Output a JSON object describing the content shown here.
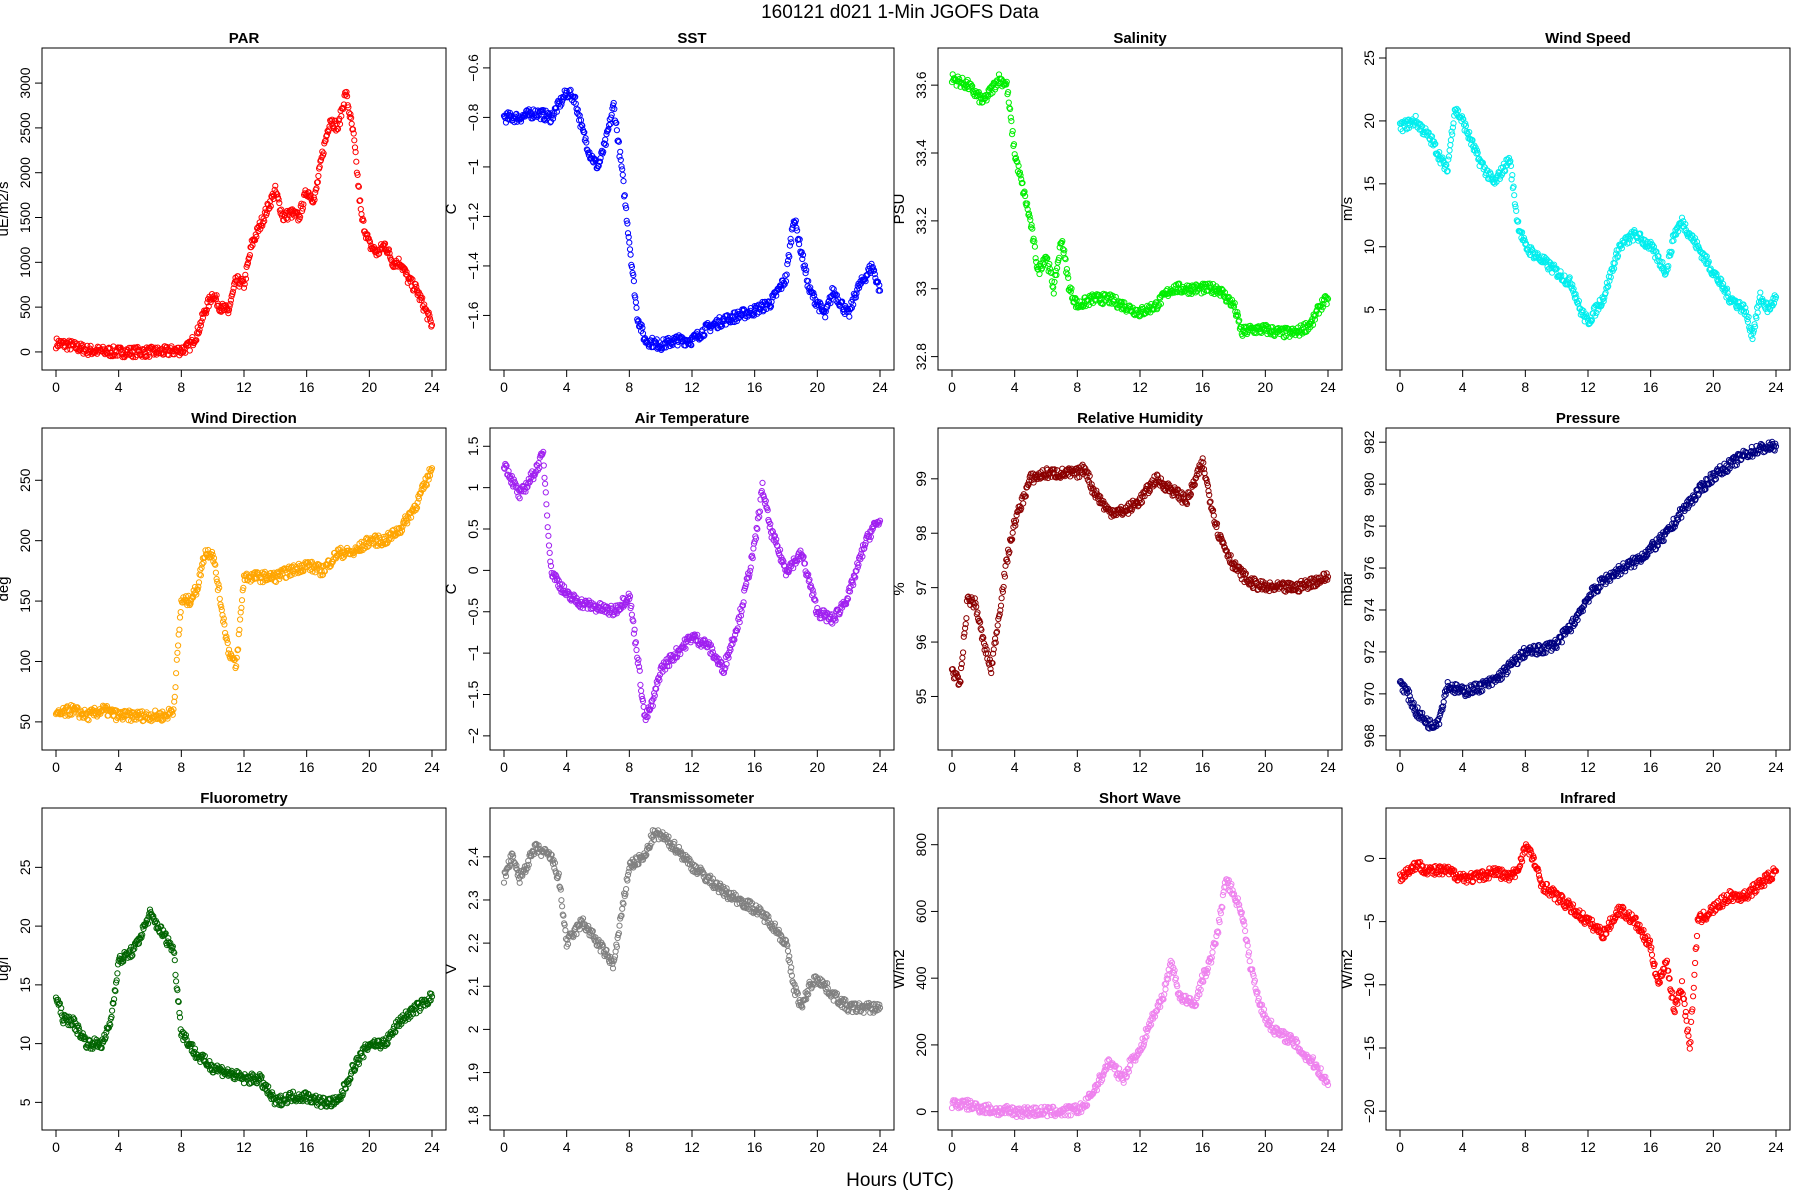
{
  "figure": {
    "title": "160121    d021    1-Min  JGOFS Data",
    "xlabel": "Hours (UTC)"
  },
  "chart_data": [
    {
      "type": "scatter",
      "title": "PAR",
      "ylabel": "uE/m2/s",
      "color": "#ff0000",
      "xlim": [
        0,
        24
      ],
      "ylim": [
        -90,
        3280
      ],
      "yticks": [
        0,
        500,
        1000,
        1500,
        2000,
        2500,
        3000
      ],
      "xticks": [
        0,
        4,
        8,
        12,
        16,
        20,
        24
      ],
      "x": [
        0,
        1,
        2,
        3,
        4,
        5,
        6,
        7,
        8,
        8.5,
        9,
        9.5,
        10,
        10.5,
        11,
        11.5,
        12,
        12.5,
        13,
        13.5,
        14,
        14.5,
        15,
        15.5,
        16,
        16.5,
        17,
        17.5,
        18,
        18.5,
        19,
        19.5,
        20,
        20.5,
        21,
        21.5,
        22,
        22.5,
        23,
        23.5,
        24
      ],
      "y": [
        100,
        70,
        20,
        5,
        0,
        0,
        0,
        5,
        20,
        60,
        200,
        450,
        650,
        500,
        450,
        800,
        750,
        1200,
        1400,
        1600,
        1800,
        1500,
        1550,
        1500,
        1800,
        1700,
        2200,
        2600,
        2500,
        2900,
        2400,
        1500,
        1200,
        1100,
        1200,
        1000,
        1000,
        800,
        700,
        500,
        300
      ]
    },
    {
      "type": "scatter",
      "title": "SST",
      "ylabel": "C",
      "color": "#0000ff",
      "xlim": [
        0,
        24
      ],
      "ylim": [
        -1.78,
        -0.56
      ],
      "yticks": [
        -1.6,
        -1.4,
        -1.2,
        -1.0,
        -0.8,
        -0.6
      ],
      "xticks": [
        0,
        4,
        8,
        12,
        16,
        20,
        24
      ],
      "x": [
        0,
        1,
        2,
        3,
        4,
        4.5,
        5,
        5.5,
        6,
        6.5,
        7,
        7.5,
        8,
        8.5,
        9,
        10,
        11,
        12,
        13,
        14,
        15,
        16,
        17,
        18,
        18.5,
        19,
        19.5,
        20,
        20.5,
        21,
        21.5,
        22,
        22.5,
        23,
        23.5,
        24
      ],
      "y": [
        -0.8,
        -0.8,
        -0.78,
        -0.8,
        -0.7,
        -0.72,
        -0.85,
        -0.95,
        -1.0,
        -0.9,
        -0.75,
        -1.0,
        -1.3,
        -1.6,
        -1.7,
        -1.72,
        -1.7,
        -1.7,
        -1.65,
        -1.62,
        -1.6,
        -1.58,
        -1.55,
        -1.45,
        -1.2,
        -1.35,
        -1.5,
        -1.55,
        -1.6,
        -1.5,
        -1.55,
        -1.6,
        -1.5,
        -1.45,
        -1.4,
        -1.5
      ]
    },
    {
      "type": "scatter",
      "title": "Salinity",
      "ylabel": "PSU",
      "color": "#00ee00",
      "xlim": [
        0,
        24
      ],
      "ylim": [
        32.79,
        33.68
      ],
      "yticks": [
        32.8,
        33.0,
        33.2,
        33.4,
        33.6
      ],
      "xticks": [
        0,
        4,
        8,
        12,
        16,
        20,
        24
      ],
      "x": [
        0,
        1,
        2,
        3,
        3.5,
        4,
        4.5,
        5,
        5.5,
        6,
        6.5,
        7,
        7.5,
        8,
        9,
        10,
        11,
        12,
        13,
        14,
        15,
        16,
        17,
        18,
        18.5,
        19,
        20,
        21,
        22,
        23,
        23.5,
        24
      ],
      "y": [
        33.62,
        33.6,
        33.55,
        33.62,
        33.6,
        33.4,
        33.3,
        33.2,
        33.05,
        33.1,
        33.0,
        33.15,
        33.0,
        32.95,
        32.97,
        32.97,
        32.95,
        32.93,
        32.95,
        33.0,
        33.0,
        33.0,
        33.0,
        32.95,
        32.87,
        32.88,
        32.88,
        32.87,
        32.87,
        32.9,
        32.95,
        32.97
      ]
    },
    {
      "type": "scatter",
      "title": "Wind Speed",
      "ylabel": "m/s",
      "color": "#00eeee",
      "xlim": [
        0,
        24
      ],
      "ylim": [
        1,
        25
      ],
      "yticks": [
        5,
        10,
        15,
        20,
        25
      ],
      "xticks": [
        0,
        4,
        8,
        12,
        16,
        20,
        24
      ],
      "x": [
        0,
        1,
        2,
        3,
        3.5,
        4,
        5,
        6,
        6.5,
        7,
        7.5,
        8,
        9,
        10,
        11,
        11.5,
        12,
        13,
        13.5,
        14,
        15,
        16,
        17,
        17.5,
        18,
        19,
        20,
        21,
        22,
        22.5,
        23,
        23.5,
        24
      ],
      "y": [
        19.5,
        20,
        18.5,
        16,
        21,
        20,
        17,
        15,
        16,
        17,
        12,
        10,
        9,
        8,
        7,
        5,
        4,
        6,
        8,
        10,
        11,
        10,
        8,
        11,
        12,
        10,
        8,
        6,
        5,
        3,
        6,
        5,
        6
      ]
    },
    {
      "type": "scatter",
      "title": "Wind Direction",
      "ylabel": "deg",
      "color": "#ffa500",
      "xlim": [
        0,
        24
      ],
      "ylim": [
        35,
        285
      ],
      "yticks": [
        50,
        100,
        150,
        200,
        250
      ],
      "xticks": [
        0,
        4,
        8,
        12,
        16,
        20,
        24
      ],
      "x": [
        0,
        1,
        2,
        3,
        4,
        5,
        6,
        7,
        7.5,
        8,
        8.5,
        9,
        9.5,
        10,
        10.5,
        11,
        11.5,
        12,
        13,
        14,
        15,
        16,
        17,
        18,
        19,
        20,
        21,
        22,
        23,
        23.5,
        24
      ],
      "y": [
        55,
        60,
        55,
        60,
        55,
        55,
        55,
        55,
        60,
        150,
        150,
        160,
        190,
        190,
        150,
        110,
        95,
        170,
        170,
        170,
        175,
        180,
        175,
        190,
        190,
        200,
        200,
        210,
        230,
        245,
        260
      ]
    },
    {
      "type": "scatter",
      "title": "Air Temperature",
      "ylabel": "C",
      "color": "#a020f0",
      "xlim": [
        0,
        24
      ],
      "ylim": [
        -2.05,
        1.6
      ],
      "yticks": [
        -2.0,
        -1.5,
        -1.0,
        -0.5,
        0.0,
        0.5,
        1.0,
        1.5
      ],
      "xticks": [
        0,
        4,
        8,
        12,
        16,
        20,
        24
      ],
      "x": [
        0,
        1,
        2,
        2.5,
        3,
        4,
        5,
        6,
        7,
        8,
        8.5,
        9,
        9.5,
        10,
        11,
        12,
        13,
        14,
        15,
        16,
        16.5,
        17,
        18,
        19,
        20,
        21,
        22,
        23,
        23.5,
        24
      ],
      "y": [
        1.3,
        0.9,
        1.2,
        1.4,
        0.0,
        -0.3,
        -0.4,
        -0.45,
        -0.5,
        -0.3,
        -1.0,
        -1.8,
        -1.6,
        -1.2,
        -1.0,
        -0.8,
        -0.9,
        -1.2,
        -0.6,
        0.3,
        1.0,
        0.5,
        0.0,
        0.2,
        -0.5,
        -0.6,
        -0.3,
        0.3,
        0.5,
        0.6
      ]
    },
    {
      "type": "scatter",
      "title": "Relative Humidity",
      "ylabel": "%",
      "color": "#8b0000",
      "xlim": [
        0,
        24
      ],
      "ylim": [
        94.2,
        99.75
      ],
      "yticks": [
        95,
        96,
        97,
        98,
        99
      ],
      "xticks": [
        0,
        4,
        8,
        12,
        16,
        20,
        24
      ],
      "x": [
        0,
        0.5,
        1,
        1.5,
        2,
        2.5,
        3,
        3.5,
        4,
        5,
        6,
        7,
        8,
        8.5,
        9,
        10,
        11,
        12,
        13,
        14,
        15,
        16,
        16.5,
        17,
        18,
        19,
        20,
        21,
        22,
        23,
        24
      ],
      "y": [
        95.5,
        95.2,
        96.8,
        96.7,
        96.0,
        95.5,
        96.5,
        97.5,
        98.2,
        99.0,
        99.1,
        99.1,
        99.1,
        99.2,
        98.8,
        98.4,
        98.4,
        98.6,
        99.0,
        98.8,
        98.6,
        99.3,
        98.6,
        98.0,
        97.4,
        97.1,
        97.0,
        97.0,
        97.0,
        97.1,
        97.2
      ]
    },
    {
      "type": "scatter",
      "title": "Pressure",
      "ylabel": "mbar",
      "color": "#000080",
      "xlim": [
        0,
        24
      ],
      "ylim": [
        967.8,
        982.2
      ],
      "yticks": [
        968,
        970,
        972,
        974,
        976,
        978,
        980,
        982
      ],
      "xticks": [
        0,
        4,
        8,
        12,
        16,
        20,
        24
      ],
      "x": [
        0,
        0.5,
        1,
        1.5,
        2,
        2.5,
        3,
        4,
        5,
        6,
        7,
        8,
        9,
        10,
        11,
        12,
        13,
        14,
        15,
        16,
        17,
        18,
        19,
        20,
        21,
        22,
        23,
        24
      ],
      "y": [
        970.6,
        970.0,
        969.2,
        968.8,
        968.5,
        968.8,
        970.4,
        970.1,
        970.3,
        970.6,
        971.3,
        972.0,
        972.1,
        972.4,
        973.3,
        974.6,
        975.4,
        975.9,
        976.3,
        976.9,
        977.6,
        978.7,
        979.6,
        980.4,
        980.9,
        981.4,
        981.7,
        981.8
      ]
    },
    {
      "type": "scatter",
      "title": "Fluorometry",
      "ylabel": "ug/l",
      "color": "#006400",
      "xlim": [
        0,
        24
      ],
      "ylim": [
        3.5,
        29.2
      ],
      "yticks": [
        5,
        10,
        15,
        20,
        25
      ],
      "xticks": [
        0,
        4,
        8,
        12,
        16,
        20,
        24
      ],
      "x": [
        0,
        0.5,
        1,
        2,
        3,
        3.5,
        4,
        5,
        6,
        6.5,
        7,
        7.5,
        8,
        9,
        10,
        11,
        12,
        13,
        13.5,
        14,
        15,
        16,
        17,
        18,
        19,
        20,
        21,
        22,
        23,
        24
      ],
      "y": [
        14,
        12,
        12,
        10,
        10,
        12,
        17,
        18,
        21,
        20,
        19,
        18,
        11,
        9,
        8,
        7.5,
        7,
        7,
        6,
        5,
        5.5,
        5.5,
        5,
        5,
        8,
        10,
        10,
        12,
        13,
        14
      ]
    },
    {
      "type": "scatter",
      "title": "Transmissometer",
      "ylabel": "V",
      "color": "#808080",
      "xlim": [
        0,
        24
      ],
      "ylim": [
        1.79,
        2.49
      ],
      "yticks": [
        1.8,
        1.9,
        2.0,
        2.1,
        2.2,
        2.3,
        2.4
      ],
      "xticks": [
        0,
        4,
        8,
        12,
        16,
        20,
        24
      ],
      "x": [
        0,
        0.5,
        1,
        2,
        3,
        3.5,
        4,
        5,
        6,
        7,
        8,
        9,
        9.5,
        10,
        11,
        12,
        13,
        14,
        15,
        16,
        17,
        18,
        18.5,
        19,
        19.5,
        20,
        21,
        22,
        23,
        24
      ],
      "y": [
        2.35,
        2.4,
        2.35,
        2.42,
        2.4,
        2.35,
        2.2,
        2.25,
        2.2,
        2.15,
        2.38,
        2.4,
        2.45,
        2.45,
        2.42,
        2.38,
        2.35,
        2.32,
        2.3,
        2.28,
        2.25,
        2.2,
        2.1,
        2.05,
        2.1,
        2.12,
        2.08,
        2.05,
        2.05,
        2.05
      ]
    },
    {
      "type": "scatter",
      "title": "Short Wave",
      "ylabel": "W/m2",
      "color": "#ee82ee",
      "xlim": [
        0,
        24
      ],
      "ylim": [
        -25,
        880
      ],
      "yticks": [
        0,
        200,
        400,
        600,
        800
      ],
      "xticks": [
        0,
        4,
        8,
        12,
        16,
        20,
        24
      ],
      "x": [
        0,
        1,
        2,
        3,
        4,
        5,
        6,
        7,
        8,
        8.5,
        9,
        9.5,
        10,
        10.5,
        11,
        11.5,
        12,
        12.5,
        13,
        13.5,
        14,
        14.5,
        15,
        15.5,
        16,
        16.5,
        17,
        17.5,
        18,
        18.5,
        19,
        19.5,
        20,
        20.5,
        21,
        21.5,
        22,
        22.5,
        23,
        23.5,
        24
      ],
      "y": [
        25,
        20,
        10,
        2,
        0,
        0,
        0,
        0,
        5,
        20,
        60,
        100,
        150,
        120,
        100,
        160,
        180,
        250,
        300,
        350,
        450,
        350,
        330,
        320,
        400,
        450,
        550,
        700,
        650,
        600,
        450,
        350,
        280,
        250,
        230,
        220,
        200,
        170,
        150,
        120,
        80
      ]
    },
    {
      "type": "scatter",
      "title": "Infrared",
      "ylabel": "W/m2",
      "color": "#ff0000",
      "xlim": [
        0,
        24
      ],
      "ylim": [
        -20.7,
        3.2
      ],
      "yticks": [
        -20,
        -15,
        -10,
        -5,
        0
      ],
      "xticks": [
        0,
        4,
        8,
        12,
        16,
        20,
        24
      ],
      "x": [
        0,
        1,
        2,
        3,
        4,
        5,
        6,
        7,
        7.5,
        8,
        8.5,
        9,
        10,
        11,
        12,
        13,
        14,
        15,
        15.5,
        16,
        16.5,
        17,
        17.5,
        18,
        18.5,
        19,
        20,
        21,
        22,
        23,
        24
      ],
      "y": [
        -1.5,
        -0.5,
        -1.0,
        -1.0,
        -1.5,
        -1.5,
        -1.0,
        -1.5,
        -1.0,
        1.0,
        0.0,
        -2.0,
        -3.0,
        -4.0,
        -5.0,
        -6.0,
        -4.0,
        -5.0,
        -6.0,
        -7.0,
        -10.0,
        -8.0,
        -12.0,
        -10.0,
        -15.0,
        -5.0,
        -4.0,
        -3.0,
        -3.0,
        -2.0,
        -1.0
      ]
    }
  ]
}
